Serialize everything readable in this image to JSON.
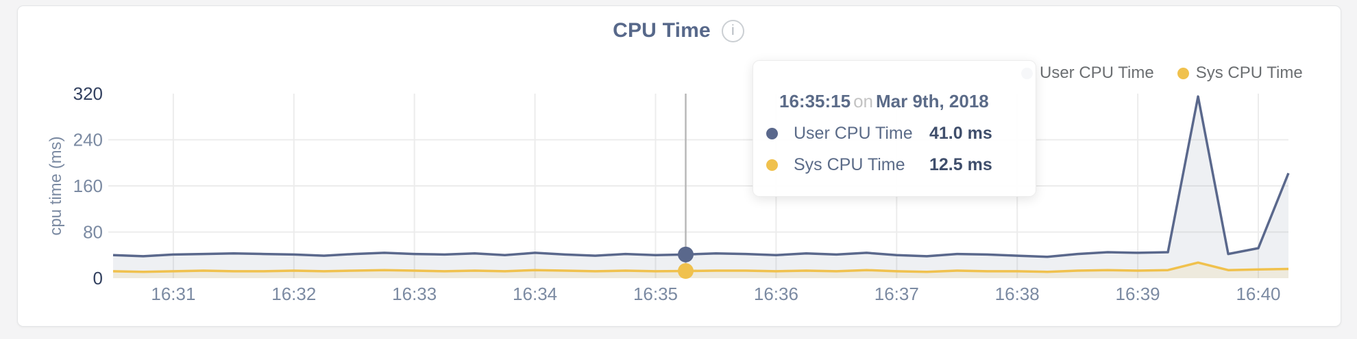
{
  "header": {
    "title": "CPU Time",
    "info_icon": "i"
  },
  "legend": {
    "position": "top-right",
    "items": [
      {
        "label": "User CPU Time",
        "color": "#5a688c"
      },
      {
        "label": "Sys CPU Time",
        "color": "#f0c14d"
      }
    ]
  },
  "tooltip": {
    "time": "16:35:15",
    "on_word": "on",
    "date": "Mar 9th, 2018",
    "hover_time": "16:35:15",
    "rows": [
      {
        "label": "User CPU Time",
        "value": "41.0 ms",
        "color": "#5a688c"
      },
      {
        "label": "Sys CPU Time",
        "value": "12.5 ms",
        "color": "#f0c14d"
      }
    ]
  },
  "colors": {
    "axis_label": "#7b8aa2",
    "axis_label_ends": "#32405f",
    "grid": "#ececec",
    "crosshair": "#b8b8b8",
    "user_line": "#5a688c",
    "sys_line": "#f0c14d",
    "user_fill": "rgba(90,104,140,0.10)",
    "sys_fill": "rgba(240,193,77,0.13)"
  },
  "chart_data": {
    "type": "area",
    "title": "CPU Time",
    "xlabel": "",
    "ylabel": "cpu time (ms)",
    "ylim": [
      0,
      320
    ],
    "y_ticks": [
      0,
      80,
      160,
      240,
      320
    ],
    "x_ticks": [
      "16:31",
      "16:32",
      "16:33",
      "16:34",
      "16:35",
      "16:36",
      "16:37",
      "16:38",
      "16:39",
      "16:40"
    ],
    "grid": true,
    "legend_position": "top-right",
    "x_times": [
      "16:30:30",
      "16:30:45",
      "16:31:00",
      "16:31:15",
      "16:31:30",
      "16:31:45",
      "16:32:00",
      "16:32:15",
      "16:32:30",
      "16:32:45",
      "16:33:00",
      "16:33:15",
      "16:33:30",
      "16:33:45",
      "16:34:00",
      "16:34:15",
      "16:34:30",
      "16:34:45",
      "16:35:00",
      "16:35:15",
      "16:35:30",
      "16:35:45",
      "16:36:00",
      "16:36:15",
      "16:36:30",
      "16:36:45",
      "16:37:00",
      "16:37:15",
      "16:37:30",
      "16:37:45",
      "16:38:00",
      "16:38:15",
      "16:38:30",
      "16:38:45",
      "16:39:00",
      "16:39:15",
      "16:39:30",
      "16:39:45",
      "16:40:00",
      "16:40:15"
    ],
    "series": [
      {
        "name": "User CPU Time",
        "unit": "ms",
        "values": [
          40,
          38,
          41,
          42,
          43,
          42,
          41,
          39,
          42,
          44,
          42,
          41,
          43,
          40,
          44,
          41,
          39,
          42,
          40,
          41,
          43,
          42,
          40,
          43,
          41,
          44,
          40,
          38,
          42,
          41,
          39,
          37,
          42,
          45,
          44,
          45,
          315,
          42,
          52,
          182
        ]
      },
      {
        "name": "Sys CPU Time",
        "unit": "ms",
        "values": [
          12,
          11,
          12,
          13,
          12,
          12,
          13,
          12,
          13,
          14,
          13,
          12,
          13,
          12,
          14,
          13,
          12,
          13,
          12,
          12.5,
          13,
          13,
          12,
          13,
          12,
          14,
          12,
          11,
          13,
          12,
          12,
          11,
          13,
          14,
          13,
          14,
          27,
          14,
          15,
          16
        ]
      }
    ]
  }
}
